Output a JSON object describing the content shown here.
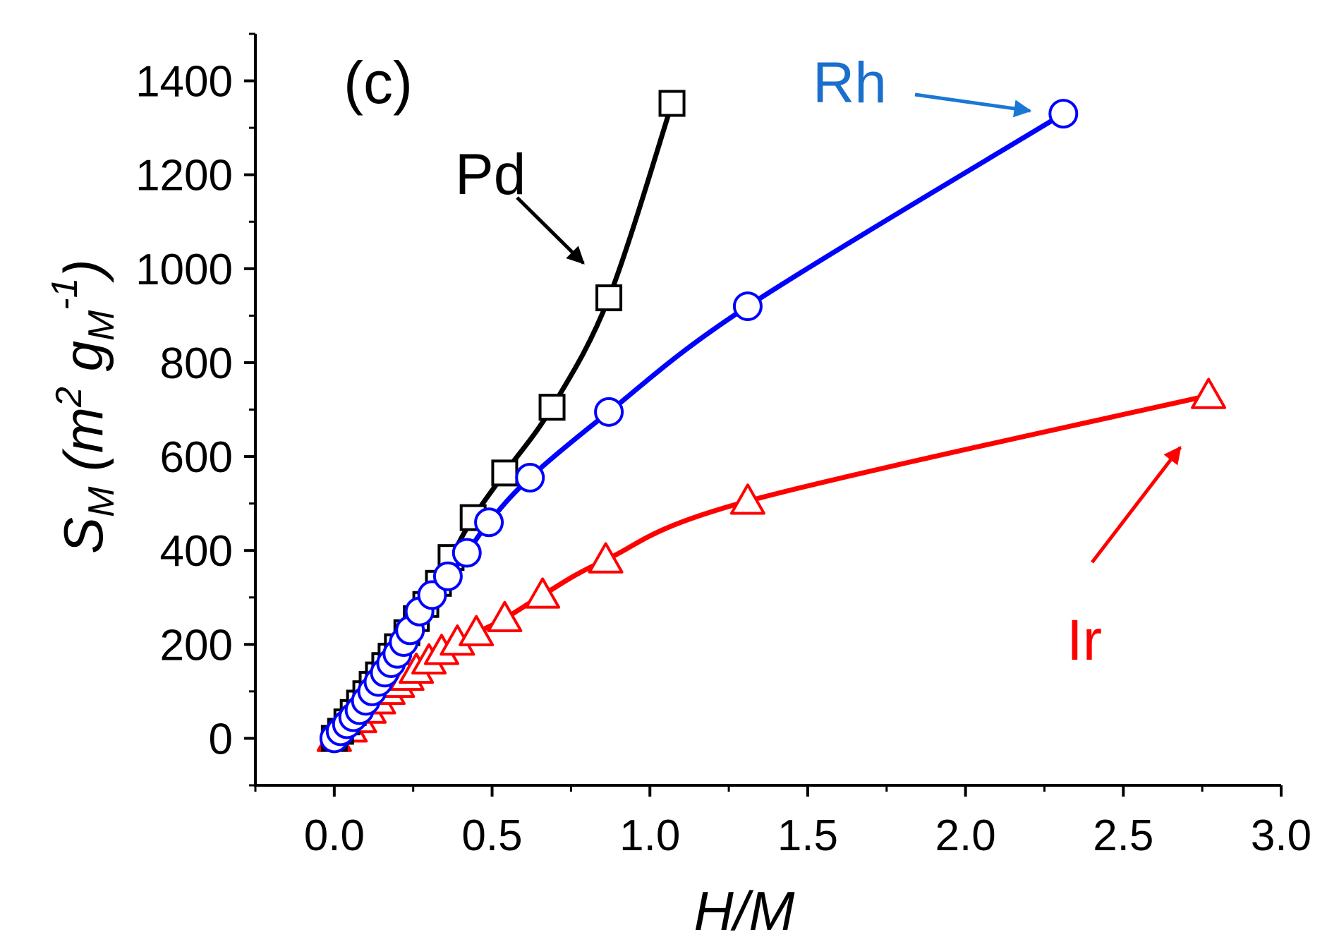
{
  "chart_data": {
    "type": "line",
    "panel_label": "(c)",
    "xlabel": "H/M",
    "ylabel": {
      "base": "S",
      "sub": "M",
      "units_open": " (m",
      "sup1": "2",
      "g": " g",
      "gsub": "M",
      "gsup": "-1",
      "close": ")"
    },
    "xlim": [
      -0.25,
      3.0
    ],
    "ylim": [
      -100,
      1500
    ],
    "x_ticks": [
      0.0,
      0.5,
      1.0,
      1.5,
      2.0,
      2.5,
      3.0
    ],
    "x_tick_labels": [
      "0.0",
      "0.5",
      "1.0",
      "1.5",
      "2.0",
      "2.5",
      "3.0"
    ],
    "y_ticks": [
      0,
      200,
      400,
      600,
      800,
      1000,
      1200,
      1400
    ],
    "y_tick_labels": [
      "0",
      "200",
      "400",
      "600",
      "800",
      "1000",
      "1200",
      "1400"
    ],
    "grid": false,
    "series": [
      {
        "name": "Pd",
        "color": "#000000",
        "marker": "square",
        "x": [
          0.0,
          0.02,
          0.04,
          0.06,
          0.08,
          0.1,
          0.12,
          0.14,
          0.16,
          0.18,
          0.2,
          0.23,
          0.26,
          0.29,
          0.33,
          0.37,
          0.44,
          0.54,
          0.69,
          0.87,
          1.07
        ],
        "y": [
          0,
          15,
          35,
          55,
          75,
          95,
          115,
          135,
          155,
          175,
          195,
          225,
          255,
          285,
          330,
          385,
          470,
          565,
          705,
          938,
          1352
        ]
      },
      {
        "name": "Rh",
        "color": "#0000ff",
        "marker": "circle",
        "x": [
          0.0,
          0.02,
          0.04,
          0.06,
          0.08,
          0.1,
          0.12,
          0.14,
          0.16,
          0.18,
          0.2,
          0.22,
          0.24,
          0.27,
          0.31,
          0.36,
          0.42,
          0.49,
          0.62,
          0.87,
          1.31,
          2.31
        ],
        "y": [
          0,
          15,
          30,
          45,
          60,
          80,
          100,
          120,
          140,
          160,
          180,
          205,
          230,
          270,
          305,
          345,
          395,
          460,
          555,
          695,
          920,
          1330
        ]
      },
      {
        "name": "Ir",
        "color": "#ff0000",
        "marker": "triangle",
        "x": [
          0.0,
          0.05,
          0.08,
          0.11,
          0.14,
          0.17,
          0.2,
          0.23,
          0.26,
          0.3,
          0.34,
          0.39,
          0.45,
          0.54,
          0.66,
          0.86,
          1.31,
          2.77
        ],
        "y": [
          0,
          20,
          40,
          60,
          80,
          100,
          115,
          130,
          145,
          165,
          185,
          205,
          225,
          255,
          305,
          380,
          505,
          730
        ]
      }
    ],
    "annotations": [
      {
        "text": "Pd",
        "color": "#000000",
        "arrow_color": "#000000"
      },
      {
        "text": "Rh",
        "color": "#1a6fcc",
        "arrow_color": "#1a78d4"
      },
      {
        "text": "Ir",
        "color": "#ff0000",
        "arrow_color": "#ff0000"
      }
    ]
  }
}
